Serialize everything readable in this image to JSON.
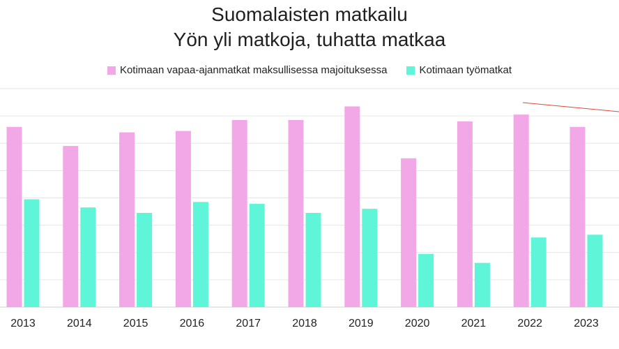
{
  "chart_data": {
    "type": "bar",
    "title_line1": "Suomalaisten matkailu",
    "title_line2": "Yön yli matkoja, tuhatta matkaa",
    "xlabel": "",
    "ylabel": "",
    "categories": [
      "2013",
      "2014",
      "2015",
      "2016",
      "2017",
      "2018",
      "2019",
      "2020",
      "2021",
      "2022",
      "2023"
    ],
    "series": [
      {
        "name": "Kotimaan vapaa-ajanmatkat maksullisessa majoituksessa",
        "color": "#f2a8e6",
        "values": [
          6.6,
          5.9,
          6.4,
          6.45,
          6.85,
          6.85,
          7.35,
          5.45,
          6.8,
          7.05,
          6.6
        ]
      },
      {
        "name": "Kotimaan työmatkat",
        "color": "#5ff5d9",
        "values": [
          3.95,
          3.65,
          3.45,
          3.85,
          3.78,
          3.45,
          3.6,
          1.95,
          1.62,
          2.55,
          2.65
        ]
      }
    ],
    "ylim": [
      0,
      8
    ],
    "grid": true,
    "legend_position": "top",
    "trend_line_color": "#e0483b"
  }
}
